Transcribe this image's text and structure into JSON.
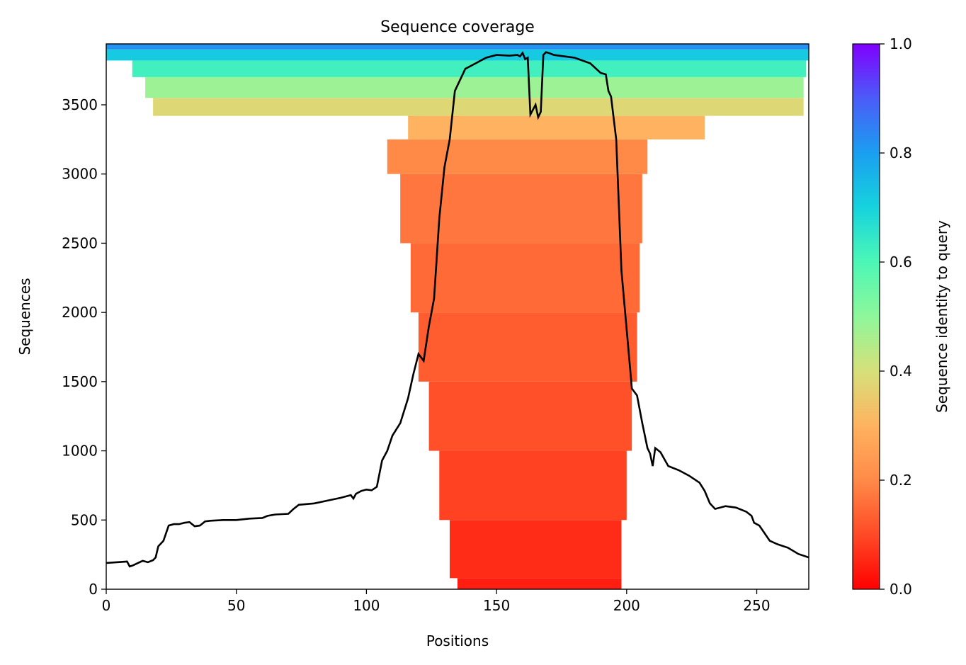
{
  "chart_data": {
    "type": "heatmap",
    "title": "Sequence coverage",
    "xlabel": "Positions",
    "ylabel": "Sequences",
    "xlim": [
      0,
      270
    ],
    "ylim": [
      0,
      3940
    ],
    "xticks": [
      0,
      50,
      100,
      150,
      200,
      250
    ],
    "yticks": [
      0,
      500,
      1000,
      1500,
      2000,
      2500,
      3000,
      3500
    ],
    "colorbar": {
      "label": "Sequence identity to query",
      "range": [
        0,
        1
      ],
      "ticks": [
        0.0,
        0.2,
        0.4,
        0.6,
        0.8,
        1.0
      ],
      "colormap": "rainbow_r"
    },
    "coverage_bands": [
      {
        "seq_from": 0,
        "seq_to": 80,
        "x_start": 135,
        "x_end": 198,
        "identity": 0.04
      },
      {
        "seq_from": 80,
        "seq_to": 500,
        "x_start": 132,
        "x_end": 198,
        "identity": 0.06
      },
      {
        "seq_from": 500,
        "seq_to": 1000,
        "x_start": 128,
        "x_end": 200,
        "identity": 0.09
      },
      {
        "seq_from": 1000,
        "seq_to": 1500,
        "x_start": 124,
        "x_end": 202,
        "identity": 0.11
      },
      {
        "seq_from": 1500,
        "seq_to": 2000,
        "x_start": 120,
        "x_end": 204,
        "identity": 0.13
      },
      {
        "seq_from": 2000,
        "seq_to": 2500,
        "x_start": 117,
        "x_end": 205,
        "identity": 0.15
      },
      {
        "seq_from": 2500,
        "seq_to": 3000,
        "x_start": 113,
        "x_end": 206,
        "identity": 0.17
      },
      {
        "seq_from": 3000,
        "seq_to": 3250,
        "x_start": 108,
        "x_end": 208,
        "identity": 0.2
      },
      {
        "seq_from": 3250,
        "seq_to": 3420,
        "x_start": 116,
        "x_end": 230,
        "identity": 0.3
      },
      {
        "seq_from": 3420,
        "seq_to": 3550,
        "x_start": 18,
        "x_end": 268,
        "identity": 0.38
      },
      {
        "seq_from": 3550,
        "seq_to": 3700,
        "x_start": 15,
        "x_end": 268,
        "identity": 0.48
      },
      {
        "seq_from": 3700,
        "seq_to": 3820,
        "x_start": 10,
        "x_end": 269,
        "identity": 0.62
      },
      {
        "seq_from": 3820,
        "seq_to": 3900,
        "x_start": 0,
        "x_end": 270,
        "identity": 0.72
      },
      {
        "seq_from": 3900,
        "seq_to": 3940,
        "x_start": 0,
        "x_end": 270,
        "identity": 0.82
      }
    ],
    "coverage_line": {
      "x": [
        0,
        8,
        9,
        10,
        14,
        16,
        18,
        19,
        20,
        21,
        22,
        24,
        26,
        28,
        30,
        32,
        34,
        36,
        38,
        40,
        45,
        50,
        55,
        60,
        62,
        65,
        70,
        72,
        74,
        80,
        85,
        90,
        94,
        95,
        96,
        98,
        100,
        102,
        104,
        106,
        108,
        110,
        113,
        116,
        118,
        120,
        122,
        124,
        126,
        128,
        130,
        132,
        134,
        138,
        142,
        146,
        150,
        155,
        158,
        159,
        160,
        161,
        162,
        163,
        165,
        166,
        167,
        168,
        169,
        170,
        172,
        176,
        180,
        186,
        190,
        192,
        193,
        194,
        196,
        198,
        200,
        202,
        204,
        206,
        208,
        209,
        210,
        211,
        213,
        216,
        220,
        224,
        228,
        230,
        232,
        234,
        238,
        242,
        246,
        248,
        249,
        251,
        255,
        258,
        262,
        266,
        270
      ],
      "y": [
        190,
        200,
        165,
        170,
        205,
        195,
        210,
        230,
        310,
        330,
        350,
        460,
        470,
        470,
        480,
        485,
        455,
        460,
        490,
        495,
        500,
        500,
        510,
        515,
        530,
        540,
        545,
        580,
        610,
        620,
        640,
        660,
        680,
        655,
        690,
        710,
        720,
        715,
        740,
        930,
        1000,
        1110,
        1200,
        1380,
        1550,
        1700,
        1650,
        1900,
        2100,
        2680,
        3050,
        3250,
        3600,
        3760,
        3800,
        3840,
        3860,
        3855,
        3860,
        3850,
        3875,
        3830,
        3840,
        3430,
        3500,
        3410,
        3450,
        3860,
        3880,
        3875,
        3860,
        3850,
        3840,
        3800,
        3730,
        3720,
        3600,
        3560,
        3250,
        2300,
        1880,
        1450,
        1400,
        1200,
        1020,
        980,
        890,
        1020,
        990,
        890,
        860,
        820,
        770,
        710,
        620,
        580,
        600,
        590,
        560,
        530,
        480,
        460,
        350,
        325,
        300,
        255,
        230
      ]
    }
  }
}
